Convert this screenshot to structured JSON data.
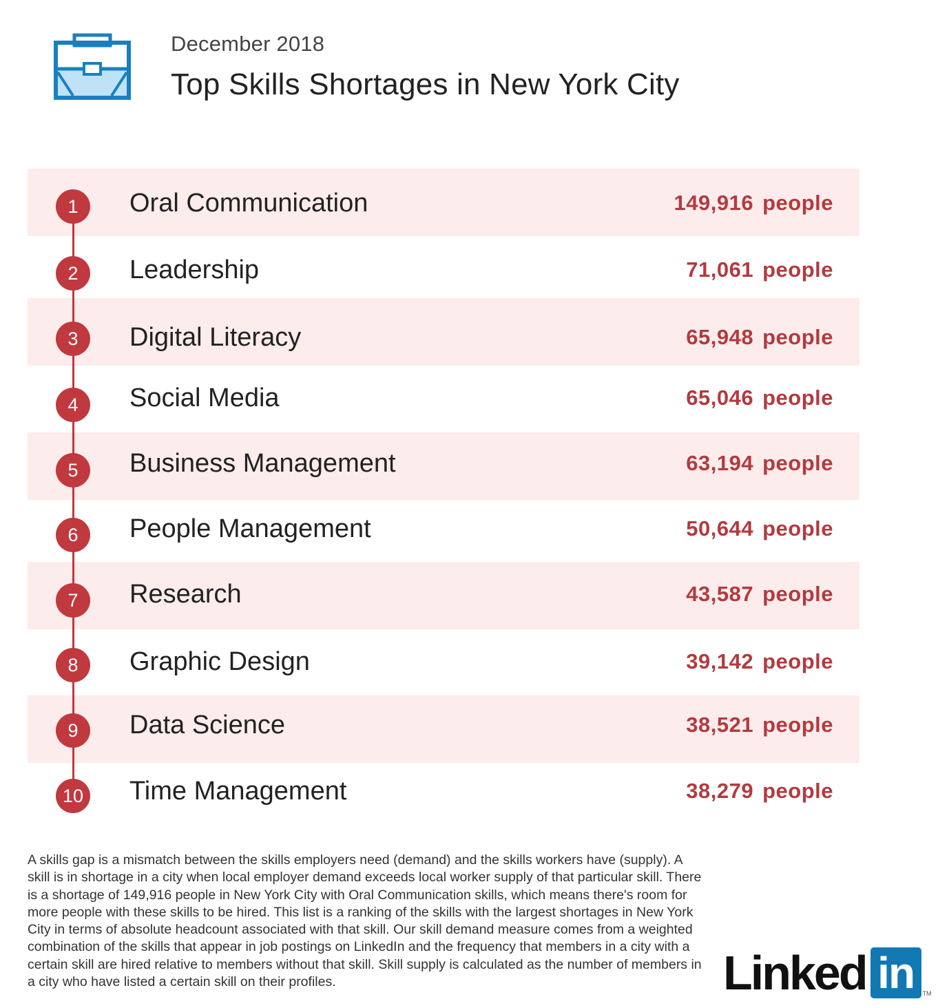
{
  "header": {
    "date": "December 2018",
    "title": "Top Skills Shortages in New York City",
    "icon": "briefcase-icon"
  },
  "chart_data": {
    "type": "table",
    "title": "Top Skills Shortages in New York City",
    "subtitle": "December 2018",
    "unit": "people",
    "rows": [
      {
        "rank": "1",
        "skill": "Oral Communication",
        "value": "149,916",
        "unit": "people"
      },
      {
        "rank": "2",
        "skill": "Leadership",
        "value": "71,061",
        "unit": "people"
      },
      {
        "rank": "3",
        "skill": "Digital Literacy",
        "value": "65,948",
        "unit": "people"
      },
      {
        "rank": "4",
        "skill": "Social Media",
        "value": "65,046",
        "unit": "people"
      },
      {
        "rank": "5",
        "skill": "Business Management",
        "value": "63,194",
        "unit": "people"
      },
      {
        "rank": "6",
        "skill": "People Management",
        "value": "50,644",
        "unit": "people"
      },
      {
        "rank": "7",
        "skill": "Research",
        "value": "43,587",
        "unit": "people"
      },
      {
        "rank": "8",
        "skill": "Graphic Design",
        "value": "39,142",
        "unit": "people"
      },
      {
        "rank": "9",
        "skill": "Data Science",
        "value": "38,521",
        "unit": "people"
      },
      {
        "rank": "10",
        "skill": "Time Management",
        "value": "38,279",
        "unit": "people"
      }
    ]
  },
  "footnote": "A skills gap is a mismatch between the skills employers need (demand) and the skills workers have (supply). A skill is in shortage in a city when local employer demand exceeds local worker supply of that particular skill. There is a shortage of 149,916 people in New York City with Oral Communication skills, which means there's room for more people with these skills to be hired. This list is a ranking of the skills with the largest shortages in New York City in terms of absolute headcount associated with that skill. Our skill demand measure comes from a weighted combination of the skills that appear in job postings on LinkedIn and the frequency that members in a city with a certain skill are hired relative to members without that skill. Skill supply is calculated as the number of members in a city who have listed a certain skill on their profiles.",
  "logo": {
    "word": "Linked",
    "box": "in",
    "tm": "TM"
  },
  "colors": {
    "accent": "#c0393f",
    "value_text": "#b33a3e",
    "row_shade": "#fdecec",
    "icon_blue": "#1a7fc1",
    "icon_fill": "#bfe2f7",
    "logo_blue": "#1178b3"
  }
}
